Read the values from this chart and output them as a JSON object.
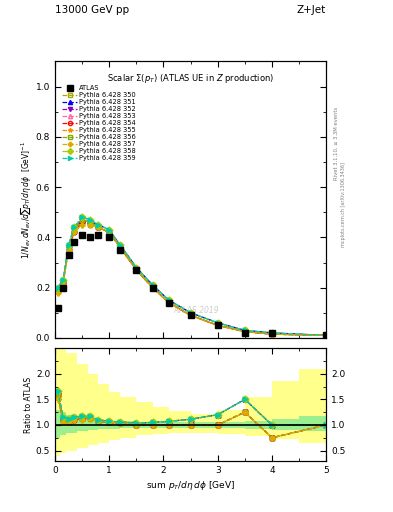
{
  "title_top_left": "13000 GeV pp",
  "title_top_right": "Z+Jet",
  "plot_title": "Scalar Σ(p_T) (ATLAS UE in Z production)",
  "xlabel": "sum p_T/dη dϕ [GeV]",
  "ylabel_main": "1/N_{ev} dN_{ev}/dsum p_T/dη dϕ  [GeV]^{-1}",
  "ylabel_ratio": "Ratio to ATLAS",
  "right_label_top": "Rivet 3.1.10, ≥ 3.3M events",
  "right_label_bot": "mcplots.cern.ch [arXiv:1306.3436]",
  "watermark": "ATLAS 2019",
  "atlas_x": [
    0.05,
    0.15,
    0.25,
    0.35,
    0.5,
    0.65,
    0.8,
    1.0,
    1.2,
    1.5,
    1.8,
    2.1,
    2.5,
    3.0,
    3.5,
    4.0,
    5.0
  ],
  "atlas_y": [
    0.12,
    0.2,
    0.33,
    0.38,
    0.41,
    0.4,
    0.41,
    0.4,
    0.35,
    0.27,
    0.2,
    0.14,
    0.09,
    0.05,
    0.02,
    0.02,
    0.01
  ],
  "series": [
    {
      "label": "Pythia 6.428 350",
      "color": "#aaaa00",
      "linestyle": "--",
      "marker": "s",
      "fillstyle": "none",
      "x": [
        0.05,
        0.15,
        0.25,
        0.35,
        0.5,
        0.65,
        0.8,
        1.0,
        1.2,
        1.5,
        1.8,
        2.1,
        2.5,
        3.0,
        3.5,
        4.0,
        5.0
      ],
      "y": [
        0.19,
        0.22,
        0.36,
        0.43,
        0.46,
        0.45,
        0.44,
        0.42,
        0.37,
        0.28,
        0.21,
        0.15,
        0.1,
        0.06,
        0.03,
        0.02,
        0.01
      ]
    },
    {
      "label": "Pythia 6.428 351",
      "color": "#0000ff",
      "linestyle": "--",
      "marker": "^",
      "fillstyle": "full",
      "x": [
        0.05,
        0.15,
        0.25,
        0.35,
        0.5,
        0.65,
        0.8,
        1.0,
        1.2,
        1.5,
        1.8,
        2.1,
        2.5,
        3.0,
        3.5,
        4.0,
        5.0
      ],
      "y": [
        0.2,
        0.23,
        0.37,
        0.43,
        0.47,
        0.46,
        0.45,
        0.43,
        0.37,
        0.28,
        0.21,
        0.15,
        0.1,
        0.06,
        0.03,
        0.02,
        0.01
      ]
    },
    {
      "label": "Pythia 6.428 352",
      "color": "#8800bb",
      "linestyle": "--",
      "marker": "v",
      "fillstyle": "full",
      "x": [
        0.05,
        0.15,
        0.25,
        0.35,
        0.5,
        0.65,
        0.8,
        1.0,
        1.2,
        1.5,
        1.8,
        2.1,
        2.5,
        3.0,
        3.5,
        4.0,
        5.0
      ],
      "y": [
        0.19,
        0.22,
        0.36,
        0.43,
        0.47,
        0.46,
        0.44,
        0.42,
        0.36,
        0.27,
        0.2,
        0.14,
        0.09,
        0.05,
        0.025,
        0.015,
        0.01
      ]
    },
    {
      "label": "Pythia 6.428 353",
      "color": "#ff66aa",
      "linestyle": "--",
      "marker": "^",
      "fillstyle": "none",
      "x": [
        0.05,
        0.15,
        0.25,
        0.35,
        0.5,
        0.65,
        0.8,
        1.0,
        1.2,
        1.5,
        1.8,
        2.1,
        2.5,
        3.0,
        3.5,
        4.0,
        5.0
      ],
      "y": [
        0.19,
        0.22,
        0.36,
        0.43,
        0.47,
        0.46,
        0.44,
        0.42,
        0.37,
        0.27,
        0.2,
        0.14,
        0.09,
        0.05,
        0.025,
        0.015,
        0.01
      ]
    },
    {
      "label": "Pythia 6.428 354",
      "color": "#ff0000",
      "linestyle": "--",
      "marker": "o",
      "fillstyle": "none",
      "x": [
        0.05,
        0.15,
        0.25,
        0.35,
        0.5,
        0.65,
        0.8,
        1.0,
        1.2,
        1.5,
        1.8,
        2.1,
        2.5,
        3.0,
        3.5,
        4.0,
        5.0
      ],
      "y": [
        0.19,
        0.22,
        0.35,
        0.42,
        0.46,
        0.46,
        0.44,
        0.42,
        0.36,
        0.27,
        0.2,
        0.14,
        0.09,
        0.05,
        0.025,
        0.015,
        0.01
      ]
    },
    {
      "label": "Pythia 6.428 355",
      "color": "#ff8800",
      "linestyle": "--",
      "marker": "*",
      "fillstyle": "full",
      "x": [
        0.05,
        0.15,
        0.25,
        0.35,
        0.5,
        0.65,
        0.8,
        1.0,
        1.2,
        1.5,
        1.8,
        2.1,
        2.5,
        3.0,
        3.5,
        4.0,
        5.0
      ],
      "y": [
        0.19,
        0.22,
        0.36,
        0.43,
        0.47,
        0.46,
        0.44,
        0.42,
        0.37,
        0.27,
        0.2,
        0.14,
        0.09,
        0.05,
        0.025,
        0.015,
        0.01
      ]
    },
    {
      "label": "Pythia 6.428 356",
      "color": "#88aa00",
      "linestyle": "--",
      "marker": "s",
      "fillstyle": "none",
      "x": [
        0.05,
        0.15,
        0.25,
        0.35,
        0.5,
        0.65,
        0.8,
        1.0,
        1.2,
        1.5,
        1.8,
        2.1,
        2.5,
        3.0,
        3.5,
        4.0,
        5.0
      ],
      "y": [
        0.19,
        0.22,
        0.36,
        0.43,
        0.47,
        0.46,
        0.44,
        0.42,
        0.36,
        0.27,
        0.2,
        0.14,
        0.09,
        0.05,
        0.025,
        0.015,
        0.01
      ]
    },
    {
      "label": "Pythia 6.428 357",
      "color": "#ddaa00",
      "linestyle": "--",
      "marker": "P",
      "fillstyle": "full",
      "x": [
        0.05,
        0.15,
        0.25,
        0.35,
        0.5,
        0.65,
        0.8,
        1.0,
        1.2,
        1.5,
        1.8,
        2.1,
        2.5,
        3.0,
        3.5,
        4.0,
        5.0
      ],
      "y": [
        0.18,
        0.21,
        0.35,
        0.42,
        0.45,
        0.45,
        0.44,
        0.42,
        0.36,
        0.27,
        0.2,
        0.14,
        0.09,
        0.05,
        0.025,
        0.015,
        0.01
      ]
    },
    {
      "label": "Pythia 6.428 358",
      "color": "#aacc00",
      "linestyle": "--",
      "marker": "D",
      "fillstyle": "full",
      "x": [
        0.05,
        0.15,
        0.25,
        0.35,
        0.5,
        0.65,
        0.8,
        1.0,
        1.2,
        1.5,
        1.8,
        2.1,
        2.5,
        3.0,
        3.5,
        4.0,
        5.0
      ],
      "y": [
        0.2,
        0.23,
        0.37,
        0.44,
        0.48,
        0.47,
        0.45,
        0.43,
        0.37,
        0.28,
        0.21,
        0.15,
        0.1,
        0.06,
        0.03,
        0.02,
        0.01
      ]
    },
    {
      "label": "Pythia 6.428 359",
      "color": "#00ccaa",
      "linestyle": "--",
      "marker": ">",
      "fillstyle": "full",
      "x": [
        0.05,
        0.15,
        0.25,
        0.35,
        0.5,
        0.65,
        0.8,
        1.0,
        1.2,
        1.5,
        1.8,
        2.1,
        2.5,
        3.0,
        3.5,
        4.0,
        5.0
      ],
      "y": [
        0.2,
        0.23,
        0.37,
        0.44,
        0.48,
        0.47,
        0.45,
        0.43,
        0.37,
        0.28,
        0.21,
        0.15,
        0.1,
        0.06,
        0.03,
        0.02,
        0.01
      ]
    }
  ],
  "band_x_edges": [
    0.0,
    0.1,
    0.2,
    0.4,
    0.6,
    0.8,
    1.0,
    1.2,
    1.5,
    1.8,
    2.1,
    2.5,
    3.0,
    3.5,
    4.0,
    4.5,
    5.5
  ],
  "green_lo": [
    0.75,
    0.8,
    0.85,
    0.88,
    0.9,
    0.92,
    0.93,
    0.94,
    0.95,
    0.95,
    0.95,
    0.95,
    0.95,
    0.92,
    0.9,
    0.88,
    0.85
  ],
  "green_hi": [
    1.3,
    1.25,
    1.2,
    1.15,
    1.12,
    1.1,
    1.08,
    1.07,
    1.06,
    1.05,
    1.05,
    1.05,
    1.05,
    1.08,
    1.12,
    1.18,
    1.22
  ],
  "yellow_lo": [
    0.4,
    0.45,
    0.5,
    0.55,
    0.6,
    0.65,
    0.7,
    0.75,
    0.8,
    0.82,
    0.85,
    0.85,
    0.82,
    0.78,
    0.72,
    0.65,
    0.58
  ],
  "yellow_hi": [
    2.8,
    2.6,
    2.4,
    2.2,
    2.0,
    1.8,
    1.65,
    1.55,
    1.45,
    1.35,
    1.28,
    1.22,
    1.3,
    1.55,
    1.85,
    2.1,
    2.3
  ],
  "xlim": [
    0,
    5.0
  ],
  "ylim_main": [
    0,
    1.1
  ],
  "ylim_ratio": [
    0.3,
    2.5
  ],
  "ratio_yticks": [
    0.5,
    1.0,
    1.5,
    2.0
  ]
}
